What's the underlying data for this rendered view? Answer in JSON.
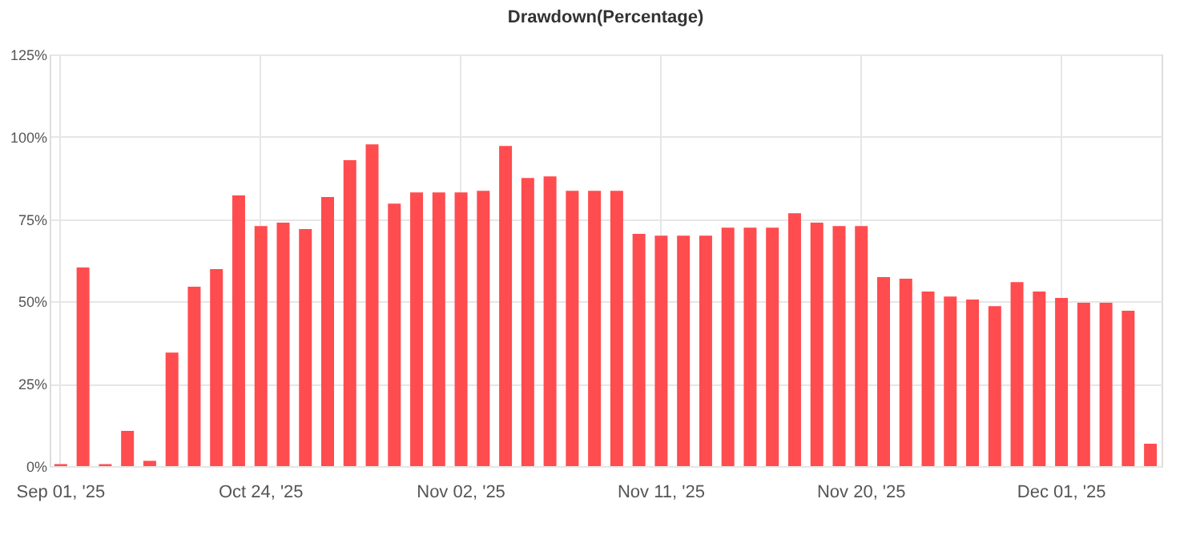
{
  "chart_data": {
    "type": "bar",
    "title": "Drawdown(Percentage)",
    "categories": [
      "Sep 01, '25",
      null,
      null,
      null,
      null,
      null,
      null,
      null,
      null,
      "Oct 24, '25",
      null,
      null,
      null,
      null,
      null,
      null,
      null,
      null,
      "Nov 02, '25",
      null,
      null,
      null,
      null,
      null,
      null,
      null,
      null,
      "Nov 11, '25",
      null,
      null,
      null,
      null,
      null,
      null,
      null,
      null,
      "Nov 20, '25",
      null,
      null,
      null,
      null,
      null,
      null,
      null,
      null,
      "Dec 01, '25",
      null,
      null,
      null,
      null
    ],
    "values": [
      0.6,
      60.3,
      0.6,
      10.7,
      1.6,
      34.5,
      54.5,
      59.8,
      82.2,
      72.9,
      73.9,
      72.0,
      81.7,
      92.9,
      97.7,
      79.7,
      83.1,
      83.1,
      83.1,
      83.6,
      97.2,
      87.5,
      88.0,
      83.6,
      83.6,
      83.6,
      70.5,
      70.0,
      70.0,
      70.0,
      72.4,
      72.4,
      72.4,
      76.8,
      73.9,
      72.9,
      72.9,
      57.4,
      56.9,
      53.0,
      51.5,
      50.6,
      48.6,
      55.9,
      53.0,
      51.1,
      49.6,
      49.6,
      47.2,
      6.8
    ],
    "color": "#ff4c4f",
    "ylim": [
      0,
      125
    ],
    "yticks": [
      {
        "value": 0,
        "label": "0%"
      },
      {
        "value": 25,
        "label": "25%"
      },
      {
        "value": 50,
        "label": "50%"
      },
      {
        "value": 75,
        "label": "75%"
      },
      {
        "value": 100,
        "label": "100%"
      },
      {
        "value": 125,
        "label": "125%"
      }
    ],
    "grid": true
  }
}
